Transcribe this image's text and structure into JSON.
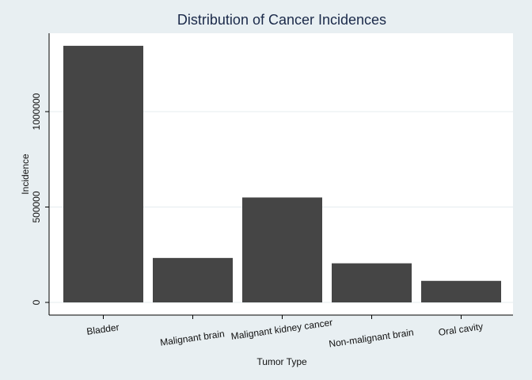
{
  "chart_data": {
    "type": "bar",
    "title": "Distribution of Cancer Incidences",
    "xlabel": "Tumor Type",
    "ylabel": "Incidence",
    "categories": [
      "Bladder",
      "Malignant brain",
      "Malignant kidney cancer",
      "Non-malignant brain",
      "Oral cavity"
    ],
    "values": [
      1345000,
      233000,
      550000,
      205000,
      113000
    ],
    "yticks": [
      "0",
      "500000",
      "1000000"
    ],
    "ylim": [
      0,
      1420000
    ],
    "grid": true,
    "legend": "none",
    "colors": {
      "bar": "#454545",
      "grid": "#e6ecef",
      "plot_bg": "#ffffff",
      "page_bg": "#e8eff2",
      "title": "#1b2a4a"
    }
  }
}
